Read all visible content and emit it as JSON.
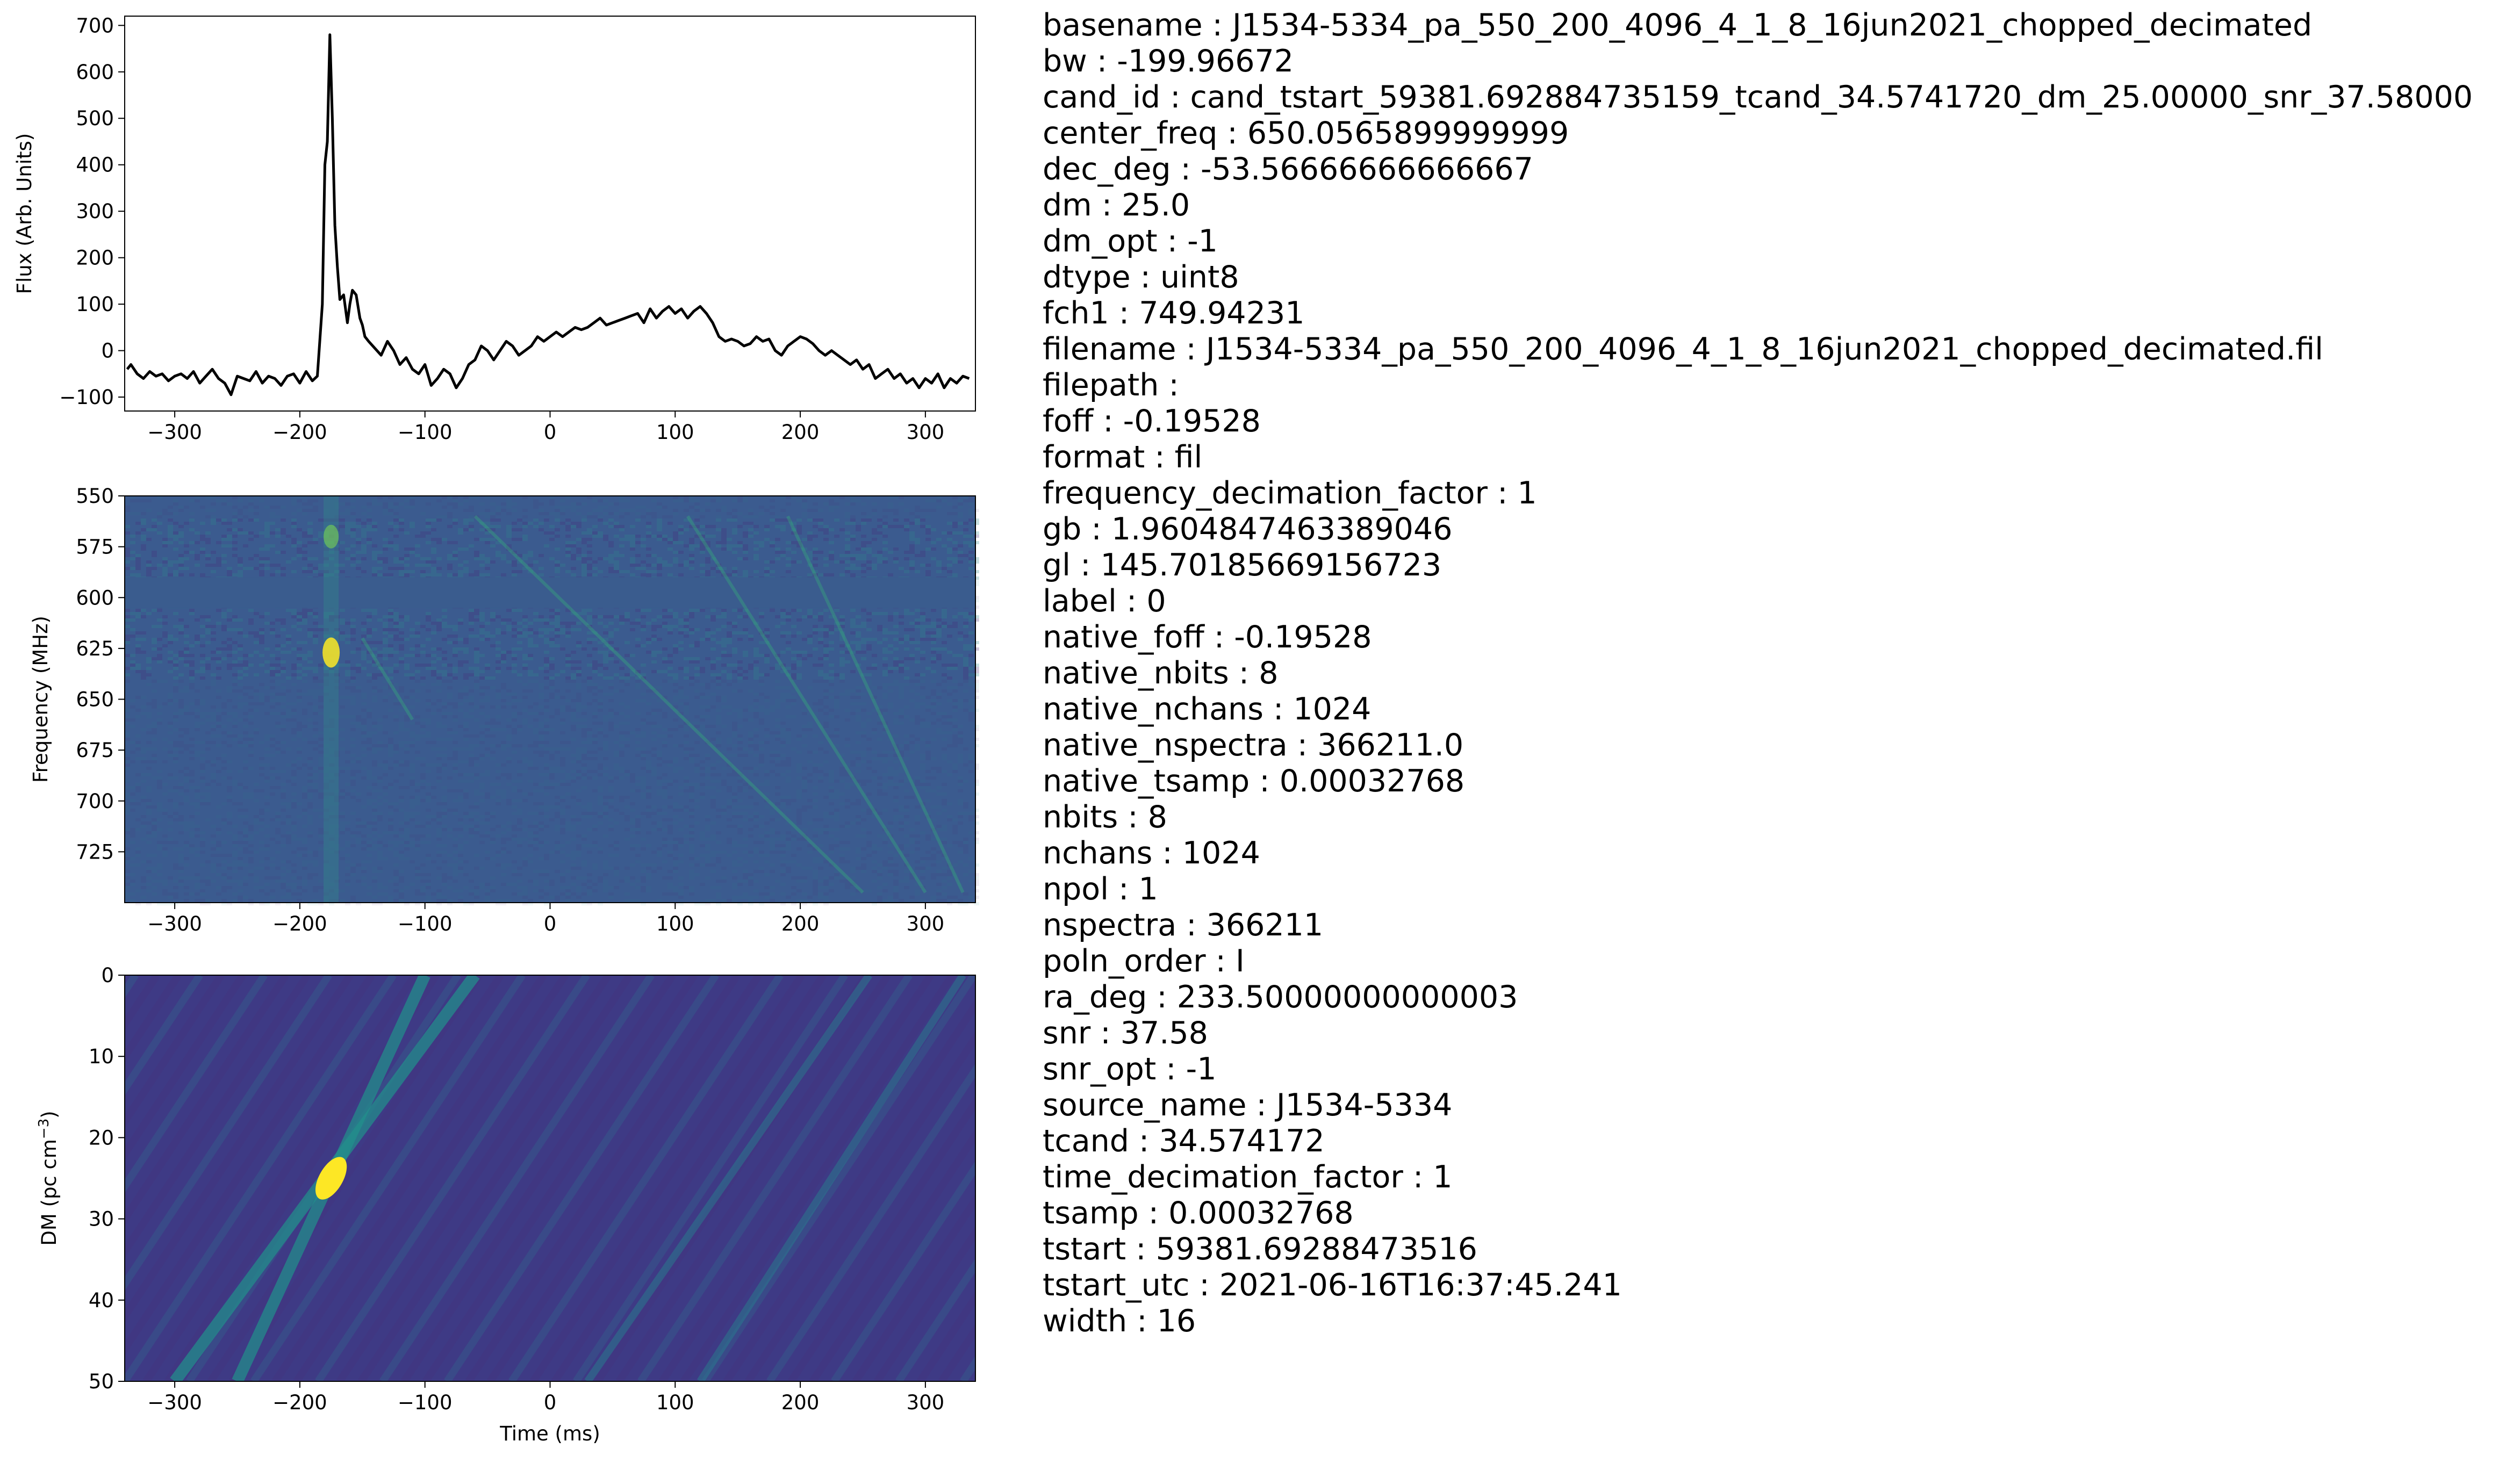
{
  "colors": {
    "line": "#000000",
    "spectrogram_base": "#3b5b8f",
    "viridis_dark": "#440154",
    "viridis_mid": "#21918c",
    "viridis_bright": "#fde725"
  },
  "chart_data": [
    {
      "type": "line",
      "title": "",
      "xlabel": "",
      "ylabel": "Flux (Arb. Units)",
      "xlim": [
        -340,
        340
      ],
      "ylim": [
        -130,
        720
      ],
      "xticks": [
        -300,
        -200,
        -100,
        0,
        100,
        200,
        300
      ],
      "xtick_labels": [
        "−300",
        "−200",
        "−100",
        "0",
        "100",
        "200",
        "300"
      ],
      "yticks": [
        -100,
        0,
        100,
        200,
        300,
        400,
        500,
        600,
        700
      ],
      "ytick_labels": [
        "−100",
        "0",
        "100",
        "200",
        "300",
        "400",
        "500",
        "600",
        "700"
      ],
      "x": [
        -338,
        -335,
        -330,
        -325,
        -320,
        -315,
        -310,
        -305,
        -300,
        -295,
        -290,
        -285,
        -280,
        -275,
        -270,
        -265,
        -260,
        -255,
        -250,
        -245,
        -240,
        -235,
        -230,
        -225,
        -220,
        -215,
        -210,
        -205,
        -200,
        -195,
        -190,
        -186,
        -182,
        -180,
        -178,
        -176,
        -174,
        -172,
        -170,
        -168,
        -165,
        -162,
        -160,
        -158,
        -155,
        -152,
        -150,
        -148,
        -145,
        -140,
        -135,
        -130,
        -125,
        -120,
        -115,
        -110,
        -105,
        -100,
        -95,
        -90,
        -85,
        -80,
        -75,
        -70,
        -65,
        -60,
        -55,
        -50,
        -45,
        -40,
        -35,
        -30,
        -25,
        -20,
        -15,
        -10,
        -5,
        0,
        5,
        10,
        15,
        20,
        25,
        30,
        35,
        40,
        45,
        50,
        55,
        60,
        65,
        70,
        75,
        80,
        85,
        90,
        95,
        100,
        105,
        110,
        115,
        120,
        125,
        130,
        135,
        140,
        145,
        150,
        155,
        160,
        165,
        170,
        175,
        180,
        185,
        190,
        195,
        200,
        205,
        210,
        215,
        220,
        225,
        230,
        235,
        240,
        245,
        250,
        255,
        260,
        265,
        270,
        275,
        280,
        285,
        290,
        295,
        300,
        305,
        310,
        315,
        320,
        325,
        330,
        335
      ],
      "y": [
        -40,
        -30,
        -50,
        -60,
        -45,
        -55,
        -50,
        -65,
        -55,
        -50,
        -60,
        -45,
        -70,
        -55,
        -40,
        -60,
        -70,
        -95,
        -55,
        -60,
        -65,
        -45,
        -70,
        -55,
        -60,
        -75,
        -55,
        -50,
        -70,
        -45,
        -65,
        -55,
        100,
        400,
        450,
        680,
        500,
        270,
        180,
        110,
        120,
        60,
        100,
        130,
        120,
        70,
        55,
        30,
        20,
        5,
        -10,
        20,
        0,
        -30,
        -15,
        -40,
        -50,
        -30,
        -75,
        -60,
        -40,
        -50,
        -80,
        -60,
        -30,
        -20,
        10,
        0,
        -20,
        0,
        20,
        10,
        -10,
        0,
        10,
        30,
        20,
        30,
        40,
        30,
        40,
        50,
        45,
        50,
        60,
        70,
        55,
        60,
        65,
        70,
        75,
        80,
        60,
        90,
        70,
        85,
        95,
        80,
        90,
        70,
        85,
        95,
        80,
        60,
        30,
        20,
        25,
        20,
        10,
        15,
        30,
        20,
        25,
        0,
        -10,
        10,
        20,
        30,
        25,
        15,
        0,
        -10,
        0,
        -10,
        -20,
        -30,
        -20,
        -40,
        -30,
        -60,
        -50,
        -40,
        -60,
        -50,
        -70,
        -60,
        -80,
        -60,
        -70,
        -50,
        -80,
        -60,
        -70,
        -55,
        -60
      ]
    },
    {
      "type": "heatmap",
      "title": "",
      "xlabel": "",
      "ylabel": "Frequency (MHz)",
      "xlim": [
        -340,
        340
      ],
      "ylim": [
        750,
        550
      ],
      "xticks": [
        -300,
        -200,
        -100,
        0,
        100,
        200,
        300
      ],
      "xtick_labels": [
        "−300",
        "−200",
        "−100",
        "0",
        "100",
        "200",
        "300"
      ],
      "yticks": [
        550,
        575,
        600,
        625,
        650,
        675,
        700,
        725
      ],
      "ytick_labels": [
        "550",
        "575",
        "600",
        "625",
        "650",
        "675",
        "700",
        "725"
      ],
      "grid": false
    },
    {
      "type": "heatmap",
      "title": "",
      "xlabel": "Time (ms)",
      "ylabel": "DM (pc cm",
      "ylabel_exponent": "−3",
      "ylabel_close": ")",
      "xlim": [
        -340,
        340
      ],
      "ylim": [
        50,
        0
      ],
      "xticks": [
        -300,
        -200,
        -100,
        0,
        100,
        200,
        300
      ],
      "xtick_labels": [
        "−300",
        "−200",
        "−100",
        "0",
        "100",
        "200",
        "300"
      ],
      "yticks": [
        0,
        10,
        20,
        30,
        40,
        50
      ],
      "ytick_labels": [
        "0",
        "10",
        "20",
        "30",
        "40",
        "50"
      ],
      "peak": {
        "time_ms": -175,
        "dm": 25.0
      },
      "grid": false
    }
  ],
  "metadata": [
    {
      "key": "basename",
      "value": "J1534-5334_pa_550_200_4096_4_1_8_16jun2021_chopped_decimated"
    },
    {
      "key": "bw",
      "value": "-199.96672"
    },
    {
      "key": "cand_id",
      "value": "cand_tstart_59381.692884735159_tcand_34.5741720_dm_25.00000_snr_37.58000"
    },
    {
      "key": "center_freq",
      "value": "650.0565899999999"
    },
    {
      "key": "dec_deg",
      "value": "-53.56666666666667"
    },
    {
      "key": "dm",
      "value": "25.0"
    },
    {
      "key": "dm_opt",
      "value": "-1"
    },
    {
      "key": "dtype",
      "value": "uint8"
    },
    {
      "key": "fch1",
      "value": "749.94231"
    },
    {
      "key": "filename",
      "value": "J1534-5334_pa_550_200_4096_4_1_8_16jun2021_chopped_decimated.fil"
    },
    {
      "key": "filepath",
      "value": ""
    },
    {
      "key": "foff",
      "value": "-0.19528"
    },
    {
      "key": "format",
      "value": "fil"
    },
    {
      "key": "frequency_decimation_factor",
      "value": "1"
    },
    {
      "key": "gb",
      "value": "1.9604847463389046"
    },
    {
      "key": "gl",
      "value": "145.70185669156723"
    },
    {
      "key": "label",
      "value": "0"
    },
    {
      "key": "native_foff",
      "value": "-0.19528"
    },
    {
      "key": "native_nbits",
      "value": "8"
    },
    {
      "key": "native_nchans",
      "value": "1024"
    },
    {
      "key": "native_nspectra",
      "value": "366211.0"
    },
    {
      "key": "native_tsamp",
      "value": "0.00032768"
    },
    {
      "key": "nbits",
      "value": "8"
    },
    {
      "key": "nchans",
      "value": "1024"
    },
    {
      "key": "npol",
      "value": "1"
    },
    {
      "key": "nspectra",
      "value": "366211"
    },
    {
      "key": "poln_order",
      "value": "I"
    },
    {
      "key": "ra_deg",
      "value": "233.50000000000003"
    },
    {
      "key": "snr",
      "value": "37.58"
    },
    {
      "key": "snr_opt",
      "value": "-1"
    },
    {
      "key": "source_name",
      "value": "J1534-5334"
    },
    {
      "key": "tcand",
      "value": "34.574172"
    },
    {
      "key": "time_decimation_factor",
      "value": "1"
    },
    {
      "key": "tsamp",
      "value": "0.00032768"
    },
    {
      "key": "tstart",
      "value": "59381.69288473516"
    },
    {
      "key": "tstart_utc",
      "value": "2021-06-16T16:37:45.241"
    },
    {
      "key": "width",
      "value": "16"
    }
  ],
  "separator": " : "
}
